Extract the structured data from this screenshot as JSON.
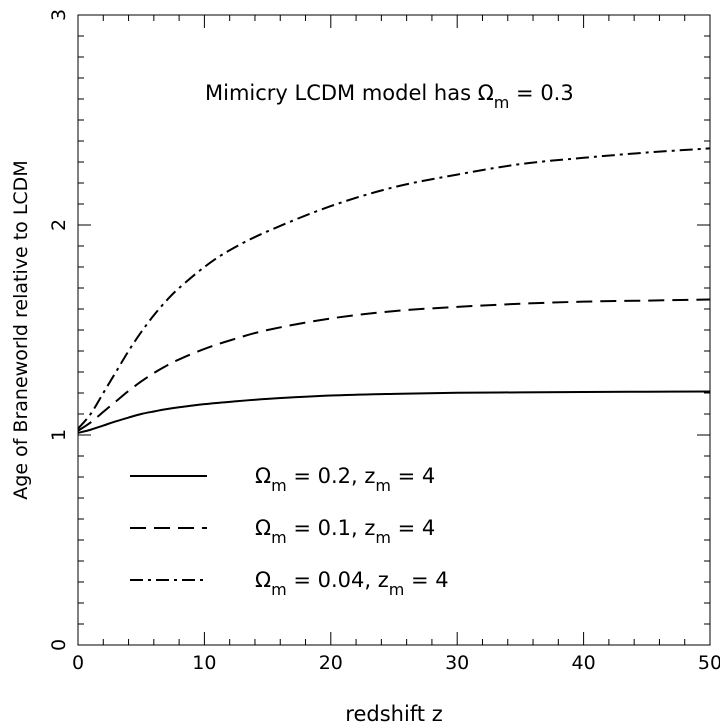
{
  "chart_data": {
    "type": "line",
    "title": "",
    "annotation": {
      "prefix": "Mimicry LCDM model has ",
      "symbol": "Ω",
      "subscript": "m",
      "suffix": " = 0.3"
    },
    "xlabel": "redshift z",
    "ylabel": "Age of Braneworld relative to LCDM",
    "xlim": [
      0,
      50
    ],
    "ylim": [
      0,
      3
    ],
    "xticks": [
      0,
      10,
      20,
      30,
      40,
      50
    ],
    "xtick_labels": [
      "0",
      "10",
      "20",
      "30",
      "40",
      "50"
    ],
    "yticks": [
      0,
      1,
      2,
      3
    ],
    "ytick_labels": [
      "0",
      "1",
      "2",
      "3"
    ],
    "grid": false,
    "legend_position": "bottom-left",
    "series": [
      {
        "omega_value": "0.2",
        "zm_value": "4",
        "line_style": "solid",
        "x": [
          0,
          1,
          2,
          3,
          4,
          5,
          6,
          7,
          8,
          10,
          12,
          15,
          20,
          25,
          30,
          35,
          40,
          45,
          50
        ],
        "y": [
          1.01,
          1.025,
          1.045,
          1.065,
          1.083,
          1.1,
          1.112,
          1.123,
          1.132,
          1.147,
          1.158,
          1.172,
          1.188,
          1.196,
          1.201,
          1.203,
          1.205,
          1.206,
          1.207
        ]
      },
      {
        "omega_value": "0.1",
        "zm_value": "4",
        "line_style": "dashed",
        "x": [
          0,
          1,
          2,
          3,
          4,
          5,
          6,
          7,
          8,
          10,
          12,
          15,
          20,
          25,
          30,
          35,
          40,
          45,
          50
        ],
        "y": [
          1.02,
          1.06,
          1.11,
          1.16,
          1.21,
          1.255,
          1.295,
          1.33,
          1.36,
          1.41,
          1.45,
          1.5,
          1.555,
          1.59,
          1.61,
          1.625,
          1.635,
          1.64,
          1.645
        ]
      },
      {
        "omega_value": "0.04",
        "zm_value": "4",
        "line_style": "dashdot",
        "x": [
          0,
          1,
          2,
          3,
          4,
          5,
          6,
          7,
          8,
          10,
          12,
          15,
          20,
          25,
          30,
          35,
          40,
          45,
          50
        ],
        "y": [
          1.03,
          1.1,
          1.2,
          1.3,
          1.4,
          1.49,
          1.57,
          1.64,
          1.7,
          1.8,
          1.88,
          1.97,
          2.09,
          2.18,
          2.24,
          2.29,
          2.32,
          2.345,
          2.365
        ]
      }
    ]
  }
}
